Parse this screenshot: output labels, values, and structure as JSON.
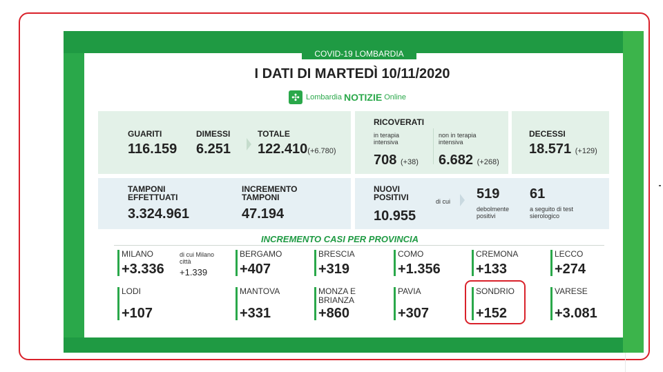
{
  "header": {
    "tab": "COVID-19 LOMBARDIA",
    "title": "I DATI DI MARTEDÌ 10/11/2020",
    "brand": {
      "pre": "Lombardia",
      "strong": "NOTIZIE",
      "post": "Online"
    }
  },
  "summary": {
    "guariti": {
      "label": "GUARITI",
      "value": "116.159"
    },
    "dimessi": {
      "label": "DIMESSI",
      "value": "6.251"
    },
    "totale": {
      "label": "TOTALE",
      "value": "122.410",
      "delta": "(+6.780)"
    },
    "ricoverati": {
      "label": "RICOVERATI",
      "ti_label": "in terapia intensiva",
      "ti_value": "708",
      "ti_delta": "(+38)",
      "nti_label": "non in terapia intensiva",
      "nti_value": "6.682",
      "nti_delta": "(+268)"
    },
    "decessi": {
      "label": "DECESSI",
      "value": "18.571",
      "delta": "(+129)"
    }
  },
  "tests": {
    "tamponi": {
      "label": "TAMPONI EFFETTUATI",
      "value": "3.324.961"
    },
    "incremento": {
      "label": "INCREMENTO TAMPONI",
      "value": "47.194"
    },
    "positivi": {
      "label": "NUOVI POSITIVI",
      "value": "10.955",
      "dicui": "di cui",
      "deb_value": "519",
      "deb_label": "debolmente positivi",
      "sier_value": "61",
      "sier_label": "a seguito di test sierologico"
    }
  },
  "provinces": {
    "heading": "INCREMENTO CASI PER PROVINCIA",
    "milano_sub_label": "di cui Milano città",
    "milano_sub_value": "+1.339",
    "items": [
      {
        "name": "MILANO",
        "value": "+3.336"
      },
      {
        "name": "BERGAMO",
        "value": "+407"
      },
      {
        "name": "BRESCIA",
        "value": "+319"
      },
      {
        "name": "COMO",
        "value": "+1.356"
      },
      {
        "name": "CREMONA",
        "value": "+133"
      },
      {
        "name": "LECCO",
        "value": "+274"
      },
      {
        "name": "LODI",
        "value": "+107"
      },
      {
        "name": "MANTOVA",
        "value": "+331"
      },
      {
        "name": "MONZA E BRIANZA",
        "value": "+860"
      },
      {
        "name": "PAVIA",
        "value": "+307"
      },
      {
        "name": "SONDRIO",
        "value": "+152"
      },
      {
        "name": "VARESE",
        "value": "+3.081"
      }
    ]
  },
  "colors": {
    "green": "#2aa84a",
    "dark_green": "#1f9a43",
    "box_bg": "#e3f1e8",
    "highlight": "#d9212a"
  }
}
